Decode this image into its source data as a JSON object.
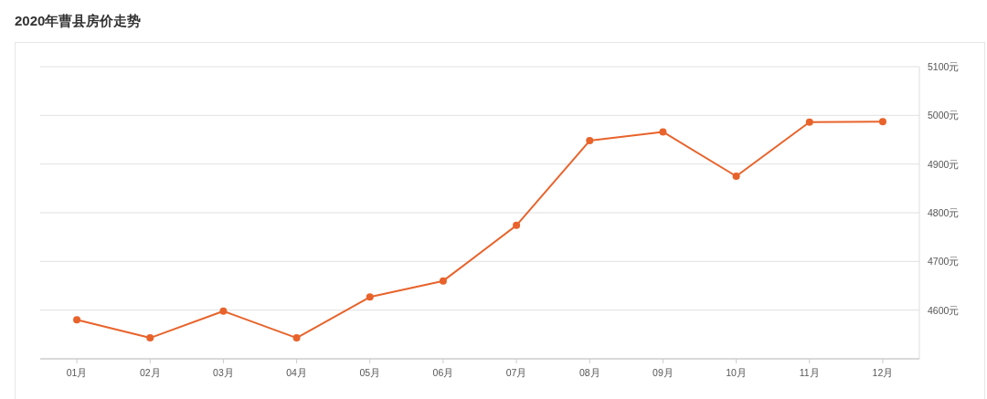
{
  "chart_data": {
    "type": "line",
    "title": "2020年曹县房价走势",
    "categories": [
      "01月",
      "02月",
      "03月",
      "04月",
      "05月",
      "06月",
      "07月",
      "08月",
      "09月",
      "10月",
      "11月",
      "12月"
    ],
    "series": [
      {
        "color": "#e8632b",
        "values": [
          4580,
          4543,
          4598,
          4543,
          4627,
          4660,
          4774,
          4948,
          4966,
          4875,
          4986,
          4987
        ]
      }
    ],
    "ylim": [
      4500,
      5100
    ],
    "yticks": [
      {
        "value": 4600,
        "label": "4600元"
      },
      {
        "value": 4700,
        "label": "4700元"
      },
      {
        "value": 4800,
        "label": "4800元"
      },
      {
        "value": 4900,
        "label": "4900元"
      },
      {
        "value": 5000,
        "label": "5000元"
      },
      {
        "value": 5100,
        "label": "5100元"
      }
    ],
    "grid": "y",
    "marker": "circle",
    "line_style": "solid"
  }
}
